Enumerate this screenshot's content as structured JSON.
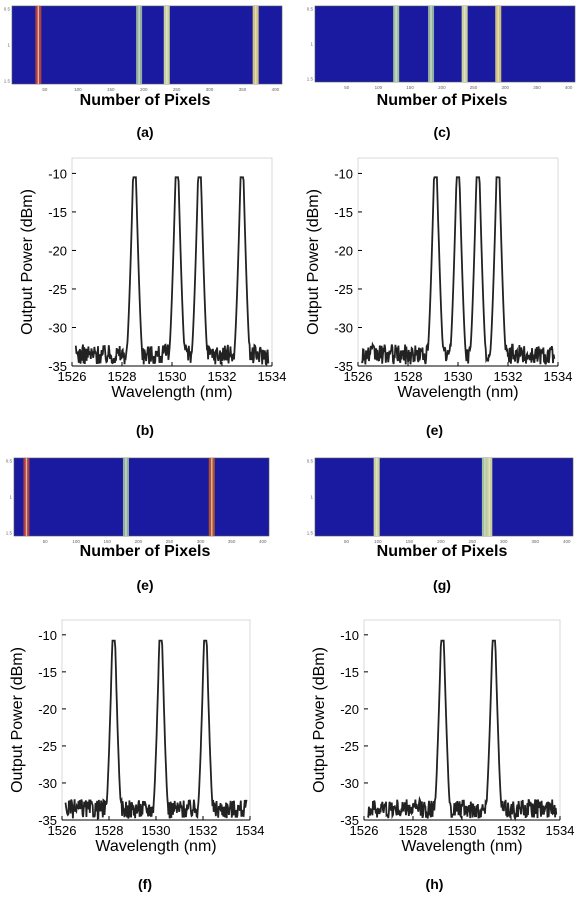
{
  "figure": {
    "panels": [
      {
        "id": "a",
        "caption": "(a)",
        "kind": "pixels"
      },
      {
        "id": "c",
        "caption": "(c)",
        "kind": "pixels"
      },
      {
        "id": "b",
        "caption": "(b)",
        "kind": "spectrum"
      },
      {
        "id": "e1",
        "caption": "(e)",
        "kind": "spectrum"
      },
      {
        "id": "e2",
        "caption": "(e)",
        "kind": "pixels"
      },
      {
        "id": "g",
        "caption": "(g)",
        "kind": "pixels"
      },
      {
        "id": "f",
        "caption": "(f)",
        "kind": "spectrum"
      },
      {
        "id": "h",
        "caption": "(h)",
        "kind": "spectrum"
      }
    ]
  },
  "colors": {
    "pixel_background": "#1a1aa0",
    "spectrum_line": "#222222",
    "axis": "#000000"
  },
  "chart_data": [
    {
      "id": "a",
      "type": "heatmap",
      "xlabel": "Number of Pixels",
      "x_ticks": [
        50,
        100,
        150,
        200,
        250,
        300,
        350,
        400
      ],
      "y_ticks": [
        "0.5",
        "1",
        "1.5"
      ],
      "xlim": [
        0,
        410
      ],
      "stripes": [
        {
          "pixel": 40,
          "color": "#b04040"
        },
        {
          "pixel": 193,
          "color": "#8fb0a0"
        },
        {
          "pixel": 235,
          "color": "#c9d0a0"
        },
        {
          "pixel": 370,
          "color": "#d0c080"
        }
      ]
    },
    {
      "id": "c",
      "type": "heatmap",
      "xlabel": "Number of Pixels",
      "x_ticks": [
        50,
        100,
        150,
        200,
        250,
        300,
        350,
        400
      ],
      "y_ticks": [
        "0.5",
        "1",
        "1.5"
      ],
      "xlim": [
        0,
        410
      ],
      "stripes": [
        {
          "pixel": 128,
          "color": "#9fc0a0"
        },
        {
          "pixel": 183,
          "color": "#8fb0a0"
        },
        {
          "pixel": 236,
          "color": "#c9d0a0"
        },
        {
          "pixel": 289,
          "color": "#d0c080"
        }
      ]
    },
    {
      "id": "b",
      "type": "line",
      "xlabel": "Wavelength (nm)",
      "ylabel": "Output Power (dBm)",
      "xlim": [
        1526,
        1534
      ],
      "ylim": [
        -35,
        -8
      ],
      "x_ticks": [
        1526,
        1528,
        1530,
        1532,
        1534
      ],
      "y_ticks": [
        -10,
        -15,
        -20,
        -25,
        -30,
        -35
      ],
      "peaks": [
        1528.5,
        1530.2,
        1531.1,
        1532.8
      ],
      "peak_power": -10.5,
      "noise_floor": -33.5
    },
    {
      "id": "e1",
      "type": "line",
      "xlabel": "Wavelength (nm)",
      "ylabel": "Output Power (dBm)",
      "xlim": [
        1526,
        1534
      ],
      "ylim": [
        -35,
        -8
      ],
      "x_ticks": [
        1526,
        1528,
        1530,
        1532,
        1534
      ],
      "y_ticks": [
        -10,
        -15,
        -20,
        -25,
        -30,
        -35
      ],
      "peaks": [
        1529.1,
        1530.0,
        1530.8,
        1531.6
      ],
      "peak_power": -10.5,
      "noise_floor": -33.5
    },
    {
      "id": "e2",
      "type": "heatmap",
      "xlabel": "Number of Pixels",
      "x_ticks": [
        50,
        100,
        150,
        200,
        250,
        300,
        350,
        400
      ],
      "y_ticks": [
        "0.5",
        "1",
        "1.5"
      ],
      "xlim": [
        0,
        410
      ],
      "stripes": [
        {
          "pixel": 20,
          "color": "#b04040"
        },
        {
          "pixel": 180,
          "color": "#8fb0a0"
        },
        {
          "pixel": 318,
          "color": "#b05030"
        }
      ]
    },
    {
      "id": "g",
      "type": "heatmap",
      "xlabel": "Number of Pixels",
      "x_ticks": [
        50,
        100,
        150,
        200,
        250,
        300,
        350,
        400
      ],
      "y_ticks": [
        "0.5",
        "1",
        "1.5"
      ],
      "xlim": [
        0,
        410
      ],
      "stripes": [
        {
          "pixel": 98,
          "color": "#c9d0a0"
        },
        {
          "pixel": 270,
          "color": "#9fc0a0"
        },
        {
          "pixel": 277,
          "color": "#c9d0a0"
        }
      ]
    },
    {
      "id": "f",
      "type": "line",
      "xlabel": "Wavelength (nm)",
      "ylabel": "Output Power (dBm)",
      "xlim": [
        1526,
        1534
      ],
      "ylim": [
        -35,
        -8
      ],
      "x_ticks": [
        1526,
        1528,
        1530,
        1532,
        1534
      ],
      "y_ticks": [
        -10,
        -15,
        -20,
        -25,
        -30,
        -35
      ],
      "peaks": [
        1528.2,
        1530.2,
        1532.1
      ],
      "peak_power": -10.8,
      "noise_floor": -33.5
    },
    {
      "id": "h",
      "type": "line",
      "xlabel": "Wavelength (nm)",
      "ylabel": "Output Power (dBm)",
      "xlim": [
        1526,
        1534
      ],
      "ylim": [
        -35,
        -8
      ],
      "x_ticks": [
        1526,
        1528,
        1530,
        1532,
        1534
      ],
      "y_ticks": [
        -10,
        -15,
        -20,
        -25,
        -30,
        -35
      ],
      "peaks": [
        1529.2,
        1531.3
      ],
      "peak_power": -10.8,
      "noise_floor": -33.5
    }
  ]
}
